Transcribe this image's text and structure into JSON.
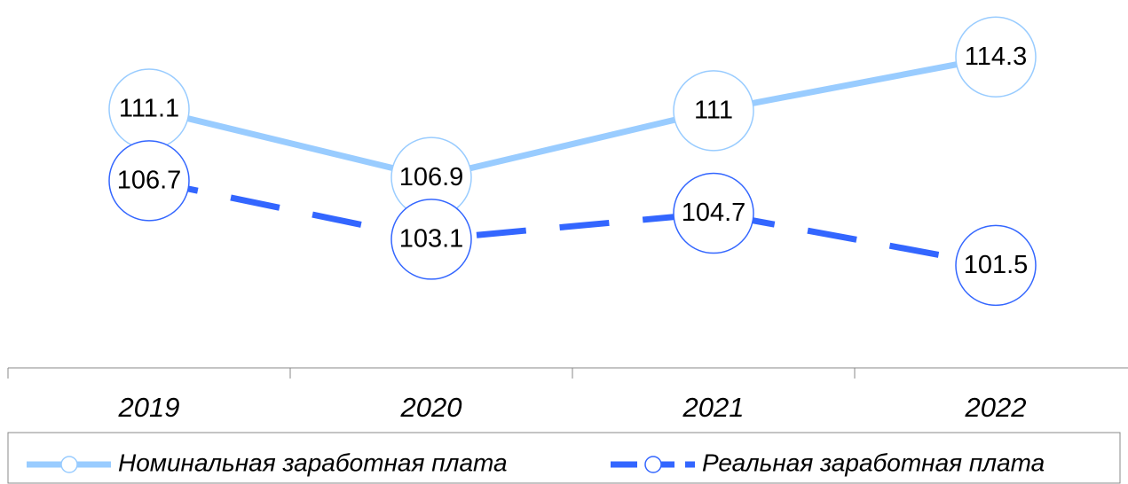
{
  "chart_data": {
    "type": "line",
    "categories": [
      "2019",
      "2020",
      "2021",
      "2022"
    ],
    "series": [
      {
        "name": "Номинальная заработная плата",
        "color": "#99ccff",
        "dash": false,
        "values": [
          111.1,
          106.9,
          111.0,
          114.3
        ]
      },
      {
        "name": "Реальная заработная плата",
        "color": "#3366ff",
        "dash": true,
        "values": [
          106.7,
          103.1,
          104.7,
          101.5
        ]
      }
    ],
    "ylim": [
      95.2,
      117.8
    ]
  }
}
